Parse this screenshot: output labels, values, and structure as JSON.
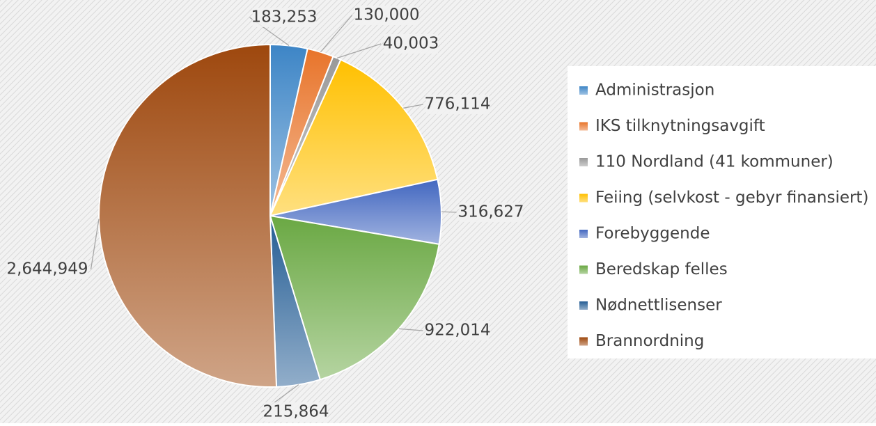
{
  "chart_data": {
    "type": "pie",
    "categories": [
      "Administrasjon",
      "IKS tilknytningsavgift",
      "110 Nordland (41 kommuner)",
      "Feiing (selvkost - gebyr finansiert)",
      "Forebyggende",
      "Beredskap felles",
      "Nødnettlisenser",
      "Brannordning"
    ],
    "values": [
      183253,
      130000,
      40003,
      776114,
      316627,
      922014,
      215864,
      2644949
    ],
    "value_labels": [
      "183,253",
      "130,000",
      "40,003",
      "776,114",
      "316,627",
      "922,014",
      "215,864",
      "2,644,949"
    ],
    "colors": [
      "#3d85c6",
      "#e8742a",
      "#999999",
      "#ffc000",
      "#4267c0",
      "#6aa843",
      "#245d94",
      "#9e480e"
    ],
    "legend": "right"
  }
}
